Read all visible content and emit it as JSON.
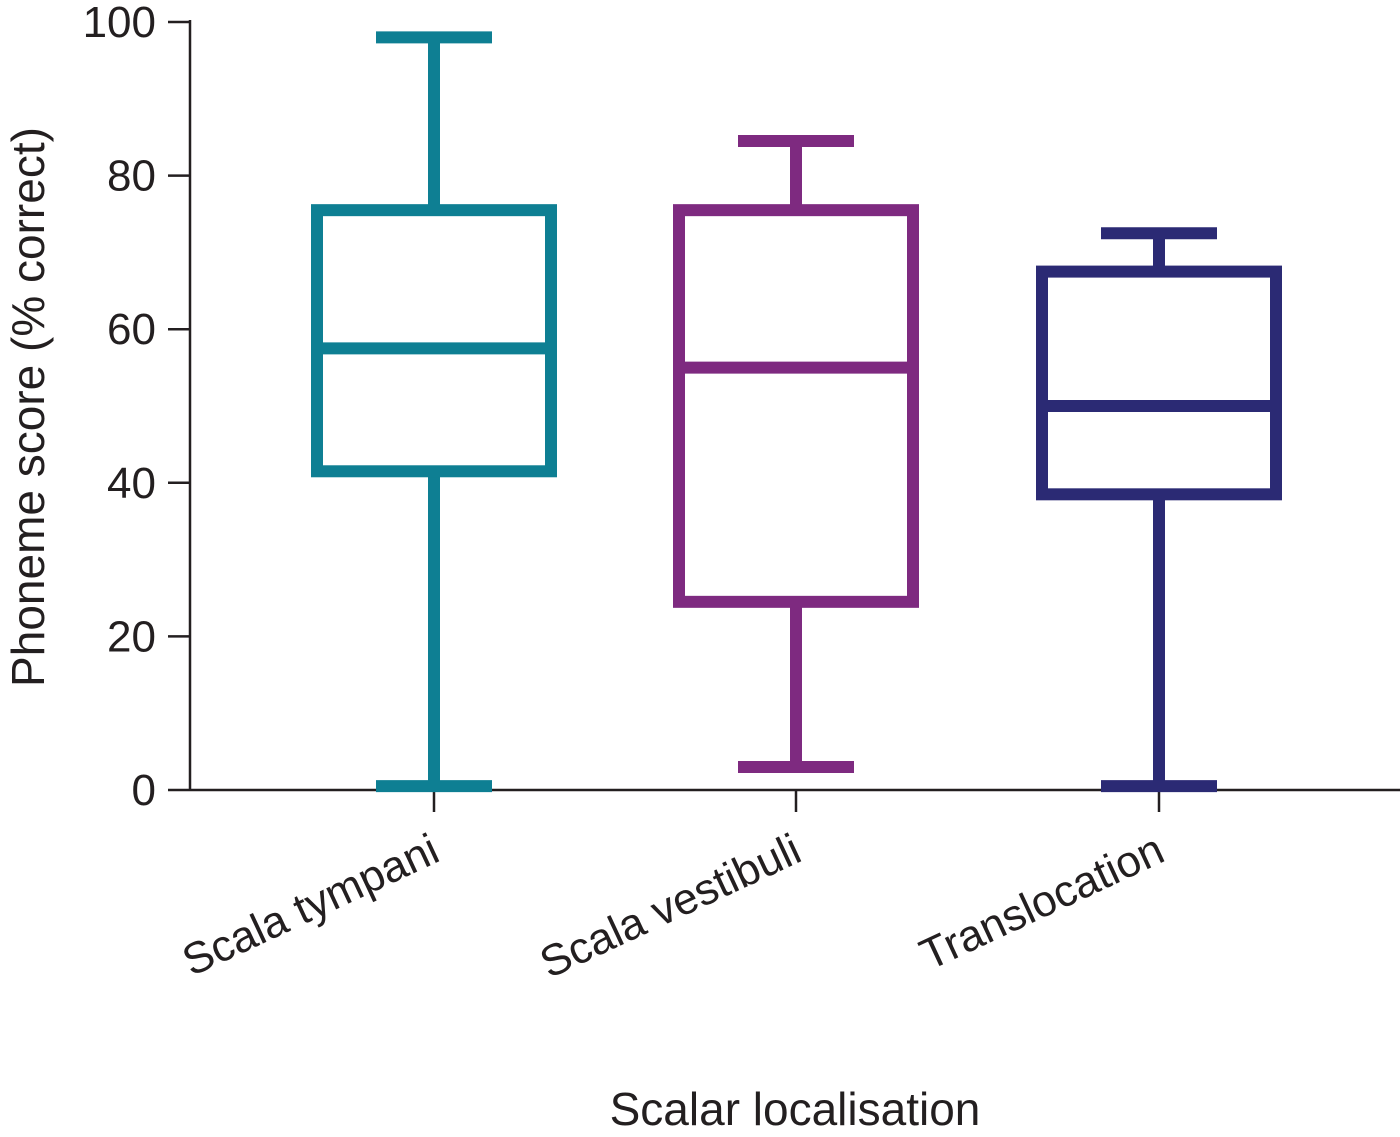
{
  "chart_data": {
    "type": "box",
    "title": "",
    "xlabel": "Scalar localisation",
    "ylabel": "Phoneme score (% correct)",
    "ylim": [
      0,
      100
    ],
    "yticks": [
      0,
      20,
      40,
      60,
      80,
      100
    ],
    "grid": false,
    "categories": [
      "Scala tympani",
      "Scala vestibuli",
      "Translocation"
    ],
    "boxes": [
      {
        "category": "Scala tympani",
        "min": 0.5,
        "q1": 41.5,
        "median": 57.5,
        "q3": 75.5,
        "max": 98,
        "color": "#0e7f93"
      },
      {
        "category": "Scala vestibuli",
        "min": 3,
        "q1": 24.5,
        "median": 55,
        "q3": 75.5,
        "max": 84.5,
        "color": "#7e2a80"
      },
      {
        "category": "Translocation",
        "min": 0.5,
        "q1": 38.5,
        "median": 50,
        "q3": 67.5,
        "max": 72.5,
        "color": "#2b2a74"
      }
    ]
  }
}
